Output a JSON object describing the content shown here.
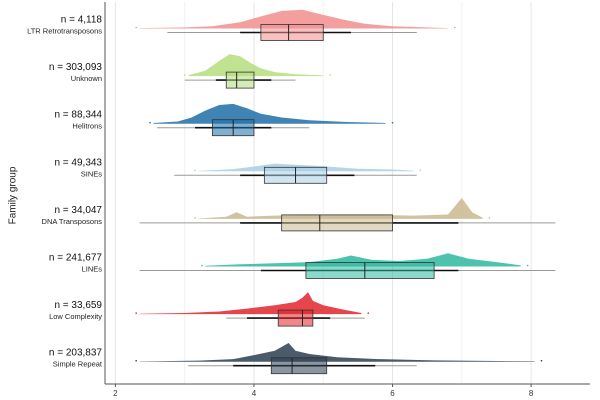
{
  "chart_data": {
    "type": "raincloud",
    "ylabel": "Family group",
    "xlim": [
      1.85,
      8.85
    ],
    "xticks": [
      2,
      4,
      6,
      8
    ],
    "grid": true,
    "groups": [
      {
        "name": "LTR Retrotransposons",
        "n_label": "n = 4,118",
        "color": "#F28E8E",
        "density": [
          [
            2.35,
            0.02
          ],
          [
            3.0,
            0.05
          ],
          [
            3.4,
            0.1
          ],
          [
            3.8,
            0.28
          ],
          [
            4.1,
            0.55
          ],
          [
            4.4,
            0.8
          ],
          [
            4.7,
            0.85
          ],
          [
            5.0,
            0.62
          ],
          [
            5.3,
            0.4
          ],
          [
            5.6,
            0.22
          ],
          [
            6.0,
            0.1
          ],
          [
            6.5,
            0.05
          ],
          [
            6.8,
            0.02
          ]
        ],
        "whisker": [
          2.75,
          6.35
        ],
        "q1": 4.1,
        "median": 4.5,
        "q3": 5.0,
        "mean_ci": [
          3.8,
          5.4
        ]
      },
      {
        "name": "Unknown",
        "n_label": "n = 303,093",
        "color": "#B5DD7E",
        "density": [
          [
            3.05,
            0.03
          ],
          [
            3.3,
            0.25
          ],
          [
            3.5,
            0.7
          ],
          [
            3.65,
            1.0
          ],
          [
            3.8,
            0.9
          ],
          [
            3.95,
            0.6
          ],
          [
            4.1,
            0.35
          ],
          [
            4.3,
            0.18
          ],
          [
            4.6,
            0.08
          ],
          [
            5.0,
            0.03
          ]
        ],
        "whisker": [
          3.0,
          4.6
        ],
        "q1": 3.6,
        "median": 3.75,
        "q3": 4.0,
        "mean_ci": [
          3.45,
          4.25
        ]
      },
      {
        "name": "Helitrons",
        "n_label": "n = 88,344",
        "color": "#1F6FA8",
        "density": [
          [
            2.55,
            0.03
          ],
          [
            2.9,
            0.1
          ],
          [
            3.1,
            0.28
          ],
          [
            3.3,
            0.6
          ],
          [
            3.5,
            0.85
          ],
          [
            3.7,
            0.9
          ],
          [
            3.9,
            0.7
          ],
          [
            4.1,
            0.45
          ],
          [
            4.4,
            0.28
          ],
          [
            4.8,
            0.16
          ],
          [
            5.3,
            0.08
          ],
          [
            5.9,
            0.03
          ]
        ],
        "whisker": [
          2.6,
          4.8
        ],
        "q1": 3.4,
        "median": 3.7,
        "q3": 4.0,
        "mean_ci": [
          3.15,
          4.25
        ]
      },
      {
        "name": "SINEs",
        "n_label": "n = 49,343",
        "color": "#A9CFE4",
        "density": [
          [
            3.2,
            0.02
          ],
          [
            3.7,
            0.1
          ],
          [
            4.0,
            0.22
          ],
          [
            4.3,
            0.35
          ],
          [
            4.6,
            0.3
          ],
          [
            4.9,
            0.25
          ],
          [
            5.2,
            0.18
          ],
          [
            5.5,
            0.12
          ],
          [
            6.0,
            0.08
          ],
          [
            6.3,
            0.03
          ]
        ],
        "whisker": [
          2.85,
          6.35
        ],
        "q1": 4.15,
        "median": 4.6,
        "q3": 5.05,
        "mean_ci": [
          3.8,
          5.45
        ]
      },
      {
        "name": "DNA Transposons",
        "n_label": "n = 34,047",
        "color": "#C9B98E",
        "density": [
          [
            3.2,
            0.02
          ],
          [
            3.6,
            0.1
          ],
          [
            3.75,
            0.3
          ],
          [
            3.9,
            0.1
          ],
          [
            4.3,
            0.15
          ],
          [
            4.7,
            0.18
          ],
          [
            5.2,
            0.2
          ],
          [
            5.8,
            0.18
          ],
          [
            6.3,
            0.15
          ],
          [
            6.8,
            0.2
          ],
          [
            7.0,
            0.95
          ],
          [
            7.15,
            0.3
          ],
          [
            7.3,
            0.05
          ]
        ],
        "whisker": [
          2.35,
          8.35
        ],
        "q1": 4.4,
        "median": 4.95,
        "q3": 6.0,
        "mean_ci": [
          3.8,
          6.95
        ]
      },
      {
        "name": "LINEs",
        "n_label": "n = 241,677",
        "color": "#2EB8A0",
        "density": [
          [
            3.3,
            0.03
          ],
          [
            3.8,
            0.1
          ],
          [
            4.3,
            0.15
          ],
          [
            4.8,
            0.2
          ],
          [
            5.2,
            0.35
          ],
          [
            5.4,
            0.5
          ],
          [
            5.7,
            0.3
          ],
          [
            6.1,
            0.25
          ],
          [
            6.5,
            0.35
          ],
          [
            6.8,
            0.6
          ],
          [
            7.1,
            0.35
          ],
          [
            7.5,
            0.2
          ],
          [
            7.85,
            0.05
          ]
        ],
        "whisker": [
          2.35,
          8.35
        ],
        "q1": 4.75,
        "median": 5.6,
        "q3": 6.6,
        "mean_ci": [
          4.1,
          6.95
        ]
      },
      {
        "name": "Low Complexity",
        "n_label": "n = 33,659",
        "color": "#E0242B",
        "density": [
          [
            2.35,
            0.02
          ],
          [
            3.0,
            0.05
          ],
          [
            3.5,
            0.12
          ],
          [
            3.9,
            0.25
          ],
          [
            4.3,
            0.4
          ],
          [
            4.6,
            0.55
          ],
          [
            4.7,
            0.75
          ],
          [
            4.78,
            1.0
          ],
          [
            4.85,
            0.6
          ],
          [
            5.0,
            0.4
          ],
          [
            5.3,
            0.2
          ],
          [
            5.55,
            0.05
          ]
        ],
        "whisker": [
          3.6,
          5.6
        ],
        "q1": 4.35,
        "median": 4.7,
        "q3": 4.85,
        "mean_ci": [
          3.9,
          5.1
        ]
      },
      {
        "name": "Simple Repeat",
        "n_label": "n = 203,837",
        "color": "#2C3E50",
        "density": [
          [
            2.35,
            0.01
          ],
          [
            3.2,
            0.05
          ],
          [
            3.7,
            0.12
          ],
          [
            4.0,
            0.3
          ],
          [
            4.3,
            0.5
          ],
          [
            4.5,
            0.85
          ],
          [
            4.6,
            0.5
          ],
          [
            4.8,
            0.35
          ],
          [
            5.2,
            0.2
          ],
          [
            5.8,
            0.12
          ],
          [
            6.6,
            0.06
          ],
          [
            7.5,
            0.03
          ],
          [
            8.05,
            0.02
          ]
        ],
        "whisker": [
          3.05,
          6.35
        ],
        "q1": 4.25,
        "median": 4.55,
        "q3": 5.05,
        "mean_ci": [
          3.7,
          5.75
        ]
      }
    ]
  }
}
